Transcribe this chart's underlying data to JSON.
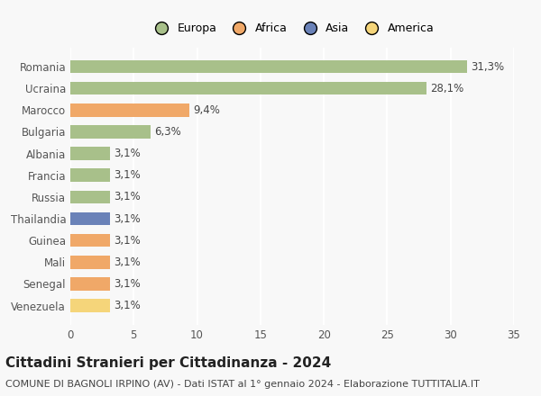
{
  "categories": [
    "Venezuela",
    "Senegal",
    "Mali",
    "Guinea",
    "Thailandia",
    "Russia",
    "Francia",
    "Albania",
    "Bulgaria",
    "Marocco",
    "Ucraina",
    "Romania"
  ],
  "values": [
    3.1,
    3.1,
    3.1,
    3.1,
    3.1,
    3.1,
    3.1,
    3.1,
    6.3,
    9.4,
    28.1,
    31.3
  ],
  "labels": [
    "3,1%",
    "3,1%",
    "3,1%",
    "3,1%",
    "3,1%",
    "3,1%",
    "3,1%",
    "3,1%",
    "6,3%",
    "9,4%",
    "28,1%",
    "31,3%"
  ],
  "colors": [
    "#f5d57a",
    "#f0a868",
    "#f0a868",
    "#f0a868",
    "#6a82b8",
    "#a8c08a",
    "#a8c08a",
    "#a8c08a",
    "#a8c08a",
    "#f0a868",
    "#a8c08a",
    "#a8c08a"
  ],
  "legend_labels": [
    "Europa",
    "Africa",
    "Asia",
    "America"
  ],
  "legend_colors": [
    "#a8c08a",
    "#f0a868",
    "#6a82b8",
    "#f5d57a"
  ],
  "xlim": [
    0,
    35
  ],
  "xticks": [
    0,
    5,
    10,
    15,
    20,
    25,
    30,
    35
  ],
  "title": "Cittadini Stranieri per Cittadinanza - 2024",
  "subtitle": "COMUNE DI BAGNOLI IRPINO (AV) - Dati ISTAT al 1° gennaio 2024 - Elaborazione TUTTITALIA.IT",
  "bg_color": "#f8f8f8",
  "grid_color": "#ffffff",
  "bar_height": 0.6,
  "label_fontsize": 8.5,
  "title_fontsize": 11,
  "subtitle_fontsize": 8
}
